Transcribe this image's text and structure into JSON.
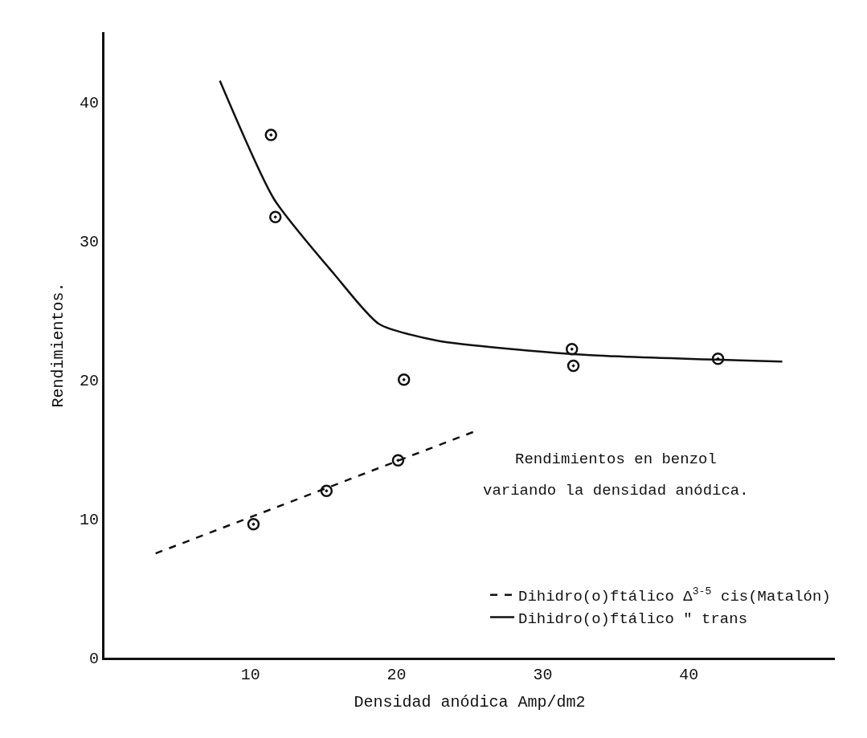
{
  "chart_data": {
    "type": "scatter",
    "xlabel": "Densidad anódica Amp/dm2",
    "ylabel": "Rendimientos.",
    "xlim": [
      0,
      50
    ],
    "ylim": [
      0,
      45
    ],
    "xticks": [
      10,
      20,
      30,
      40
    ],
    "yticks": [
      0,
      10,
      20,
      30,
      40
    ],
    "grid": false,
    "legend": "bottom right",
    "annotations": [
      "Rendimientos en benzol",
      "variando la densidad anódica."
    ],
    "series": [
      {
        "color": "#111111",
        "marker": "circle",
        "x": [
          11.4,
          11.7,
          20.5,
          32.0,
          32.1,
          42.0
        ],
        "values": [
          37.6,
          31.7,
          20,
          22.2,
          21,
          21.5
        ]
      },
      {
        "color": "#111111",
        "marker": "circle",
        "x": [
          10.2,
          15.2,
          20.1
        ],
        "values": [
          9.6,
          12,
          14.2
        ]
      },
      {
        "type": "line",
        "name": "Dihidro(o)ftálico Δ$^{3-5}$ cis(Matalón)",
        "color": "#111111",
        "marker": "none",
        "line_style": "dashed",
        "x": [
          3.5,
          25.4
        ],
        "values": [
          7.5,
          16.3
        ]
      },
      {
        "type": "line",
        "name": "Dihidro(o)ftálico \" trans",
        "color": "#111111",
        "marker": "none",
        "line_style": "solid",
        "x": [
          7.9,
          11.6,
          15.8,
          18.8,
          22.8,
          32.6,
          46.4
        ],
        "values": [
          41.5,
          33,
          27.5,
          24,
          22.8,
          21.8,
          21.3
        ]
      }
    ]
  }
}
